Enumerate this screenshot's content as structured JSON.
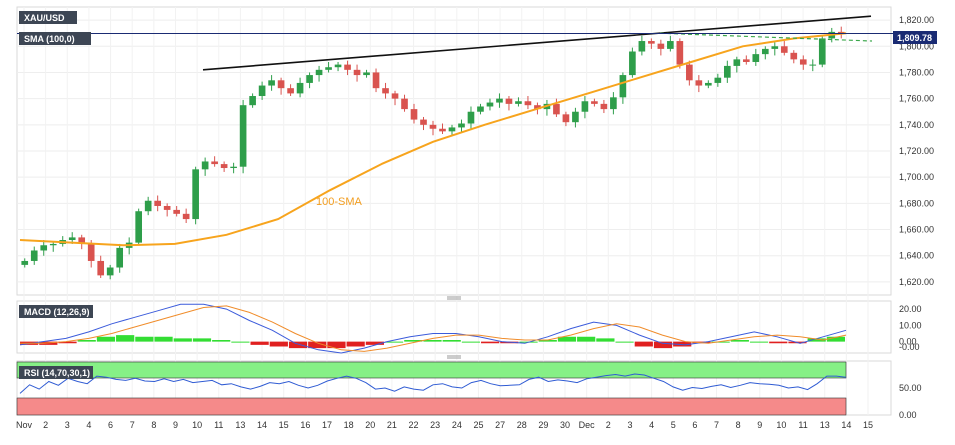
{
  "chart_data": [
    {
      "type": "candlestick",
      "symbol": "XAU/USD",
      "indicator_label": "SMA (100,0)",
      "annotation": "100-SMA",
      "price_badge": "1,809.78",
      "last_price": 1809.78,
      "ylim": [
        1610,
        1830
      ],
      "y_ticks": [
        "1,820.00",
        "1,800.00",
        "1,780.00",
        "1,760.00",
        "1,740.00",
        "1,720.00",
        "1,700.00",
        "1,680.00",
        "1,660.00",
        "1,640.00",
        "1,620.00"
      ],
      "x_ticks": [
        "Nov",
        "2",
        "3",
        "4",
        "6",
        "7",
        "8",
        "9",
        "10",
        "11",
        "13",
        "14",
        "15",
        "16",
        "17",
        "18",
        "20",
        "21",
        "22",
        "23",
        "24",
        "25",
        "27",
        "28",
        "29",
        "30",
        "Dec",
        "2",
        "3",
        "4",
        "5",
        "6",
        "7",
        "8",
        "9",
        "10",
        "11",
        "13",
        "14",
        "15"
      ],
      "series": [
        {
          "kind": "closes",
          "values": [
            1636,
            1644,
            1648,
            1649,
            1652,
            1654,
            1649,
            1636,
            1625,
            1631,
            1646,
            1650,
            1674,
            1682,
            1678,
            1675,
            1672,
            1668,
            1706,
            1712,
            1710,
            1707,
            1708,
            1755,
            1762,
            1770,
            1774,
            1768,
            1764,
            1772,
            1778,
            1782,
            1784,
            1786,
            1782,
            1778,
            1780,
            1768,
            1764,
            1760,
            1752,
            1744,
            1740,
            1737,
            1735,
            1738,
            1741,
            1750,
            1754,
            1757,
            1760,
            1756,
            1758,
            1755,
            1752,
            1756,
            1748,
            1742,
            1750,
            1758,
            1756,
            1752,
            1761,
            1778,
            1796,
            1804,
            1802,
            1798,
            1804,
            1786,
            1774,
            1770,
            1772,
            1776,
            1785,
            1790,
            1788,
            1794,
            1798,
            1800,
            1795,
            1790,
            1786,
            1786,
            1806,
            1811,
            1810
          ]
        },
        {
          "kind": "sma100",
          "values": [
            1652,
            1650,
            1648,
            1649,
            1656,
            1668,
            1690,
            1710,
            1727,
            1740,
            1752,
            1764,
            1776,
            1788,
            1800,
            1806,
            1810
          ]
        },
        {
          "kind": "trendline",
          "from": 1782,
          "to": 1823
        },
        {
          "kind": "dashed_level",
          "from": 1810,
          "to": 1804
        }
      ]
    },
    {
      "type": "bar",
      "indicator_label": "MACD (12,26,9)",
      "y_ticks": [
        "20.00",
        "10.00",
        "0.00",
        "-0.00"
      ],
      "ylim": [
        -7,
        25
      ],
      "series": [
        {
          "kind": "histogram",
          "values": [
            -2,
            -2,
            -1,
            1,
            3,
            4,
            3,
            3,
            2,
            2,
            1,
            0,
            -2,
            -3,
            -4,
            -4,
            -4,
            -3,
            -2,
            0,
            1,
            1,
            1,
            0,
            -1,
            -1,
            0,
            1,
            3,
            3,
            2,
            0,
            -3,
            -4,
            -3,
            -1,
            0,
            1,
            0,
            -1,
            -1,
            2,
            3
          ]
        },
        {
          "kind": "macd",
          "values": [
            -2,
            0,
            2,
            6,
            11,
            15,
            19,
            23,
            23,
            20,
            13,
            7,
            -1,
            -5,
            -7,
            -4,
            0,
            3,
            5,
            5,
            3,
            0,
            -1,
            3,
            8,
            12,
            10,
            4,
            -1,
            -2,
            0,
            3,
            6,
            3,
            -1,
            3,
            7
          ]
        },
        {
          "kind": "signal",
          "values": [
            -1,
            -1,
            0,
            2,
            5,
            9,
            13,
            17,
            21,
            22,
            18,
            12,
            5,
            -1,
            -5,
            -6,
            -4,
            -1,
            2,
            4,
            4,
            2,
            1,
            1,
            4,
            8,
            11,
            9,
            4,
            0,
            -1,
            1,
            3,
            4,
            3,
            1,
            4
          ]
        }
      ]
    },
    {
      "type": "line",
      "indicator_label": "RSI (14,70,30,1)",
      "y_ticks": [
        "50.00",
        "0.00"
      ],
      "ylim": [
        0,
        100
      ],
      "series": [
        {
          "kind": "rsi",
          "values": [
            40,
            56,
            48,
            62,
            55,
            68,
            62,
            58,
            72,
            70,
            66,
            64,
            68,
            63,
            62,
            67,
            62,
            66,
            60,
            62,
            64,
            56,
            58,
            52,
            48,
            53,
            60,
            58,
            62,
            55,
            50,
            55,
            63,
            68,
            72,
            68,
            60,
            48,
            50,
            44,
            52,
            48,
            46,
            56,
            58,
            52,
            50,
            60,
            64,
            58,
            54,
            55,
            56,
            66,
            70,
            62,
            65,
            63,
            60,
            67,
            70,
            73,
            75,
            72,
            76,
            74,
            68,
            62,
            52,
            46,
            51,
            49,
            53,
            56,
            51,
            55,
            60,
            58,
            57,
            55,
            50,
            52,
            47,
            58,
            72,
            72,
            70
          ]
        },
        {
          "kind": "overbought",
          "value": 70
        },
        {
          "kind": "oversold",
          "value": 30
        }
      ]
    }
  ]
}
